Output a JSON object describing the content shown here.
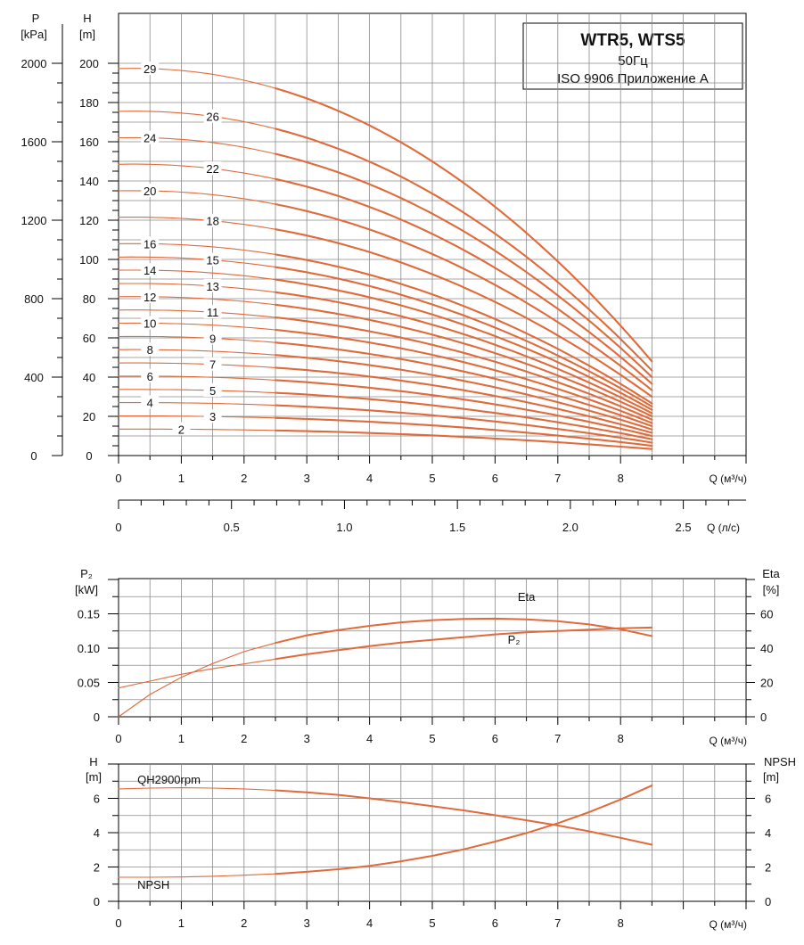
{
  "chart_data": [
    {
      "type": "line",
      "title": "WTR5, WTS5",
      "subtitle_lines": [
        "50Гц",
        "ISO 9906 Приложение А"
      ],
      "y_left": {
        "label_line1": "P",
        "label_line2": "[kPa]",
        "ticks": [
          0,
          400,
          800,
          1200,
          1600,
          2000
        ],
        "lim": [
          0,
          2000
        ]
      },
      "y_right": {
        "label_line1": "H",
        "label_line2": "[m]",
        "ticks": [
          0,
          20,
          40,
          60,
          80,
          100,
          120,
          140,
          160,
          180,
          200
        ],
        "lim": [
          0,
          200
        ]
      },
      "x": {
        "label": "Q (м³/ч)",
        "ticks": [
          0,
          1,
          2,
          3,
          4,
          5,
          6,
          7,
          8
        ],
        "lim": [
          0,
          10
        ]
      },
      "x2": {
        "label": "Q (л/с)",
        "ticks": [
          "0",
          "0.5",
          "1.0",
          "1.5",
          "2.0",
          "2.5"
        ],
        "tick_values": [
          0,
          0.5,
          1.0,
          1.5,
          2.0,
          2.5
        ]
      },
      "curve_q_range": [
        0,
        8.5
      ],
      "series": [
        {
          "name": "2",
          "h0": 13.5,
          "h_end": 3.3
        },
        {
          "name": "3",
          "h0": 20.2,
          "h_end": 5.0
        },
        {
          "name": "4",
          "h0": 27.0,
          "h_end": 6.6
        },
        {
          "name": "5",
          "h0": 33.7,
          "h_end": 8.3
        },
        {
          "name": "6",
          "h0": 40.5,
          "h_end": 10.0
        },
        {
          "name": "7",
          "h0": 47.2,
          "h_end": 11.6
        },
        {
          "name": "8",
          "h0": 54.0,
          "h_end": 13.3
        },
        {
          "name": "9",
          "h0": 60.7,
          "h_end": 15.0
        },
        {
          "name": "10",
          "h0": 67.5,
          "h_end": 16.6
        },
        {
          "name": "11",
          "h0": 74.2,
          "h_end": 18.3
        },
        {
          "name": "12",
          "h0": 81.0,
          "h_end": 20.0
        },
        {
          "name": "13",
          "h0": 87.7,
          "h_end": 21.6
        },
        {
          "name": "14",
          "h0": 94.5,
          "h_end": 23.3
        },
        {
          "name": "15",
          "h0": 101.2,
          "h_end": 25.0
        },
        {
          "name": "16",
          "h0": 108.0,
          "h_end": 26.6
        },
        {
          "name": "18",
          "h0": 121.5,
          "h_end": 30.0
        },
        {
          "name": "20",
          "h0": 135.0,
          "h_end": 33.3
        },
        {
          "name": "22",
          "h0": 148.5,
          "h_end": 36.6
        },
        {
          "name": "24",
          "h0": 162.0,
          "h_end": 40.0
        },
        {
          "name": "26",
          "h0": 175.5,
          "h_end": 43.3
        },
        {
          "name": "29",
          "h0": 197.3,
          "h_end": 48.0
        }
      ]
    },
    {
      "type": "line",
      "y_left": {
        "label_line1": "P₂",
        "label_line2": "[kW]",
        "ticks": [
          "0",
          "0.05",
          "0.10",
          "0.15"
        ],
        "tick_values": [
          0,
          0.05,
          0.1,
          0.15
        ],
        "lim": [
          0,
          0.2
        ]
      },
      "y_right": {
        "label_line1": "Eta",
        "label_line2": "[%]",
        "ticks": [
          0,
          20,
          40,
          60
        ],
        "lim": [
          0,
          80
        ]
      },
      "x": {
        "label": "Q (м³/ч)",
        "ticks": [
          0,
          1,
          2,
          3,
          4,
          5,
          6,
          7,
          8
        ],
        "lim": [
          0,
          10
        ]
      },
      "series": [
        {
          "name": "Eta",
          "axis": "right",
          "x": [
            0,
            0.5,
            1,
            1.5,
            2,
            2.5,
            3,
            3.5,
            4,
            4.5,
            5,
            5.5,
            6,
            6.5,
            7,
            7.5,
            8,
            8.5
          ],
          "y": [
            0,
            13,
            23,
            31,
            38,
            43,
            47.5,
            50.5,
            53,
            55,
            56.3,
            57,
            57.2,
            56.8,
            55.7,
            53.8,
            51,
            47
          ]
        },
        {
          "name": "P₂",
          "axis": "left",
          "x": [
            0,
            0.5,
            1,
            1.5,
            2,
            2.5,
            3,
            3.5,
            4,
            4.5,
            5,
            5.5,
            6,
            6.5,
            7,
            7.5,
            8,
            8.5
          ],
          "y": [
            0.042,
            0.052,
            0.062,
            0.07,
            0.077,
            0.084,
            0.091,
            0.097,
            0.103,
            0.108,
            0.112,
            0.116,
            0.12,
            0.123,
            0.125,
            0.127,
            0.129,
            0.13
          ]
        }
      ]
    },
    {
      "type": "line",
      "y_left": {
        "label_line1": "H",
        "label_line2": "[m]",
        "ticks": [
          0,
          2,
          4,
          6
        ],
        "lim": [
          0,
          8
        ]
      },
      "y_right": {
        "label_line1": "NPSH",
        "label_line2": "[m]",
        "ticks": [
          0,
          2,
          4,
          6
        ],
        "lim": [
          0,
          8
        ]
      },
      "x": {
        "label": "Q (м³/ч)",
        "ticks": [
          0,
          1,
          2,
          3,
          4,
          5,
          6,
          7,
          8
        ],
        "lim": [
          0,
          10
        ]
      },
      "series": [
        {
          "name": "QH2900rpm",
          "x": [
            0,
            0.5,
            1,
            1.5,
            2,
            2.5,
            3,
            3.5,
            4,
            4.5,
            5,
            5.5,
            6,
            6.5,
            7,
            7.5,
            8,
            8.5
          ],
          "y": [
            6.55,
            6.6,
            6.62,
            6.6,
            6.55,
            6.47,
            6.35,
            6.2,
            6.0,
            5.78,
            5.55,
            5.3,
            5.02,
            4.72,
            4.42,
            4.08,
            3.7,
            3.3
          ]
        },
        {
          "name": "NPSH",
          "x": [
            0,
            0.5,
            1,
            1.5,
            2,
            2.5,
            3,
            3.5,
            4,
            4.5,
            5,
            5.5,
            6,
            6.5,
            7,
            7.5,
            8,
            8.5
          ],
          "y": [
            1.4,
            1.4,
            1.42,
            1.46,
            1.52,
            1.6,
            1.72,
            1.87,
            2.07,
            2.33,
            2.65,
            3.03,
            3.48,
            3.98,
            4.55,
            5.2,
            5.93,
            6.75
          ]
        }
      ]
    }
  ],
  "colors": {
    "curve": "#e06a3a",
    "grid": "#8a8a8a",
    "axis": "#000000"
  }
}
